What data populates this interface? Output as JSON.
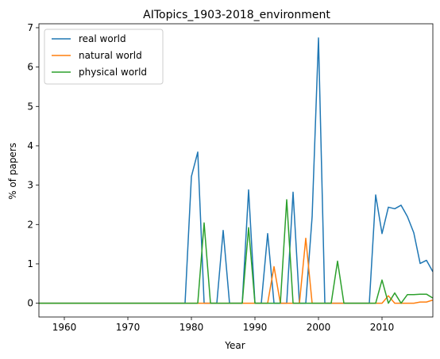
{
  "chart_data": {
    "type": "line",
    "title": "AITopics_1903-2018_environment",
    "xlabel": "Year",
    "ylabel": "% of papers",
    "xlim": [
      1956,
      2018
    ],
    "ylim": [
      -0.35,
      7.1
    ],
    "xticks": [
      1960,
      1970,
      1980,
      1990,
      2000,
      2010
    ],
    "yticks": [
      0,
      1,
      2,
      3,
      4,
      5,
      6,
      7
    ],
    "grid": false,
    "legend_position": "top-left",
    "series": [
      {
        "name": "real world",
        "color": "#1f77b4",
        "points": [
          [
            1956,
            0
          ],
          [
            1979,
            0
          ],
          [
            1980,
            3.22
          ],
          [
            1981,
            3.84
          ],
          [
            1982,
            0
          ],
          [
            1983,
            0
          ],
          [
            1984,
            0
          ],
          [
            1985,
            1.85
          ],
          [
            1986,
            0
          ],
          [
            1987,
            0
          ],
          [
            1988,
            0
          ],
          [
            1989,
            2.88
          ],
          [
            1990,
            0
          ],
          [
            1991,
            0
          ],
          [
            1992,
            1.77
          ],
          [
            1993,
            0
          ],
          [
            1994,
            0
          ],
          [
            1995,
            0
          ],
          [
            1996,
            2.82
          ],
          [
            1997,
            0
          ],
          [
            1998,
            0
          ],
          [
            1999,
            2.2
          ],
          [
            2000,
            6.74
          ],
          [
            2001,
            0
          ],
          [
            2002,
            0
          ],
          [
            2008,
            0
          ],
          [
            2009,
            2.75
          ],
          [
            2010,
            1.77
          ],
          [
            2011,
            2.44
          ],
          [
            2012,
            2.4
          ],
          [
            2013,
            2.49
          ],
          [
            2014,
            2.2
          ],
          [
            2015,
            1.79
          ],
          [
            2016,
            1.01
          ],
          [
            2017,
            1.09
          ],
          [
            2018,
            0.8
          ]
        ]
      },
      {
        "name": "natural world",
        "color": "#ff7f0e",
        "points": [
          [
            1956,
            0
          ],
          [
            1992,
            0
          ],
          [
            1993,
            0.93
          ],
          [
            1994,
            0
          ],
          [
            1997,
            0
          ],
          [
            1998,
            1.65
          ],
          [
            1999,
            0
          ],
          [
            2010,
            0
          ],
          [
            2011,
            0.19
          ],
          [
            2012,
            0
          ],
          [
            2015,
            0
          ],
          [
            2016,
            0.03
          ],
          [
            2017,
            0.03
          ],
          [
            2018,
            0.08
          ]
        ]
      },
      {
        "name": "physical world",
        "color": "#2ca02c",
        "points": [
          [
            1956,
            0
          ],
          [
            1981,
            0
          ],
          [
            1982,
            2.04
          ],
          [
            1983,
            0
          ],
          [
            1988,
            0
          ],
          [
            1989,
            1.92
          ],
          [
            1990,
            0
          ],
          [
            1994,
            0
          ],
          [
            1995,
            2.63
          ],
          [
            1996,
            0
          ],
          [
            2002,
            0
          ],
          [
            2003,
            1.07
          ],
          [
            2004,
            0
          ],
          [
            2009,
            0
          ],
          [
            2010,
            0.59
          ],
          [
            2011,
            0
          ],
          [
            2012,
            0.26
          ],
          [
            2013,
            0
          ],
          [
            2014,
            0.22
          ],
          [
            2015,
            0.22
          ],
          [
            2016,
            0.23
          ],
          [
            2017,
            0.23
          ],
          [
            2018,
            0.13
          ]
        ]
      }
    ]
  }
}
